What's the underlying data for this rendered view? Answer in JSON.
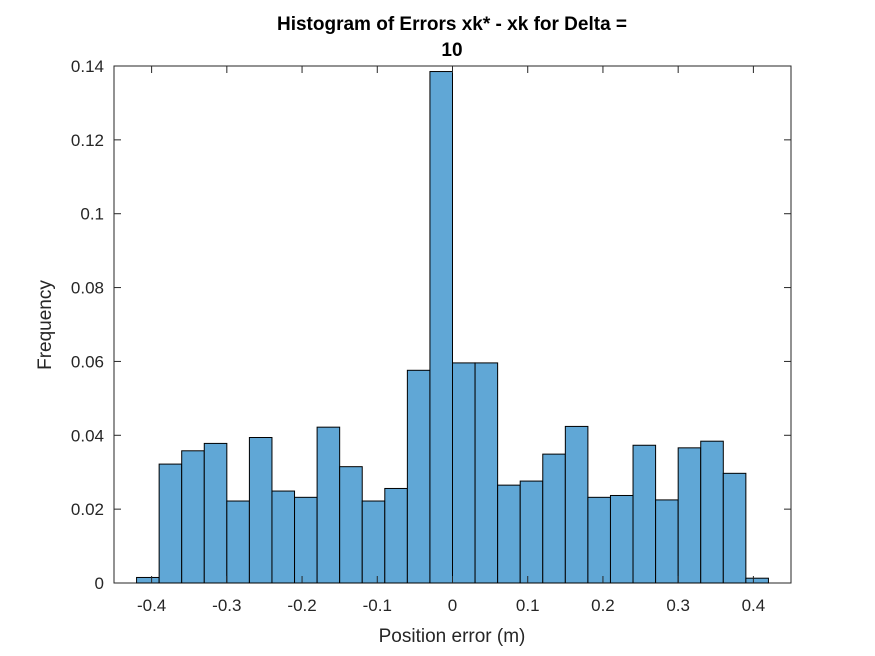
{
  "chart_data": {
    "type": "bar",
    "title_lines": [
      "Histogram of Errors xk* - xk for Delta =",
      "10"
    ],
    "xlabel": "Position error (m)",
    "ylabel": "Frequency",
    "xlim": [
      -0.45,
      0.45
    ],
    "ylim": [
      0,
      0.14
    ],
    "x_ticks": [
      -0.4,
      -0.3,
      -0.2,
      -0.1,
      0,
      0.1,
      0.2,
      0.3,
      0.4
    ],
    "x_tick_labels": [
      "-0.4",
      "-0.3",
      "-0.2",
      "-0.1",
      "0",
      "0.1",
      "0.2",
      "0.3",
      "0.4"
    ],
    "y_ticks": [
      0,
      0.02,
      0.04,
      0.06,
      0.08,
      0.1,
      0.12,
      0.14
    ],
    "y_tick_labels": [
      "0",
      "0.02",
      "0.04",
      "0.06",
      "0.08",
      "0.1",
      "0.12",
      "0.14"
    ],
    "bar_color": "#60A7D6",
    "edge_color": "#000000",
    "bin_edges": [
      -0.42,
      -0.39,
      -0.36,
      -0.33,
      -0.3,
      -0.27,
      -0.24,
      -0.21,
      -0.18,
      -0.15,
      -0.12,
      -0.09,
      -0.06,
      -0.03,
      0.0,
      0.03,
      0.06,
      0.09,
      0.12,
      0.15,
      0.18,
      0.21,
      0.24,
      0.27,
      0.3,
      0.33,
      0.36,
      0.39,
      0.42
    ],
    "values": [
      0.0015,
      0.0322,
      0.0358,
      0.0378,
      0.0222,
      0.0394,
      0.0249,
      0.0232,
      0.0422,
      0.0315,
      0.0222,
      0.0256,
      0.0576,
      0.1385,
      0.0596,
      0.0596,
      0.0265,
      0.0276,
      0.0349,
      0.0424,
      0.0232,
      0.0237,
      0.0373,
      0.0225,
      0.0366,
      0.0384,
      0.0297,
      0.0013
    ],
    "grid": false
  }
}
